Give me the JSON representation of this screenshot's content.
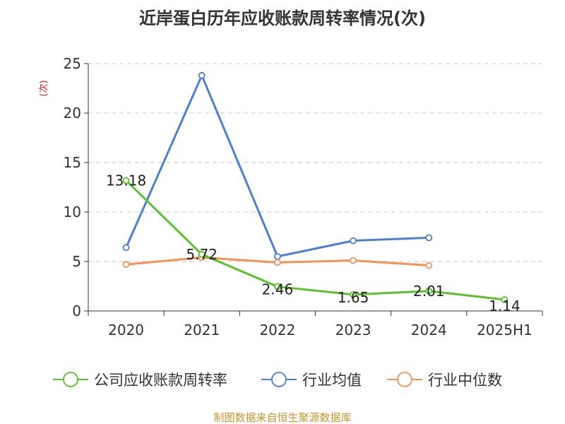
{
  "chart_data": {
    "type": "line",
    "title": "近岸蛋白历年应收账款周转率情况(次)",
    "ylabel": "(次)",
    "xlabel": "",
    "ylim": [
      0,
      25
    ],
    "y_ticks": [
      0,
      5,
      10,
      15,
      20,
      25
    ],
    "categories": [
      "2020",
      "2021",
      "2022",
      "2023",
      "2024",
      "2025H1"
    ],
    "grid": true,
    "legend_position": "bottom",
    "series": [
      {
        "name": "公司应收账款周转率",
        "color": "#5cc12e",
        "values": [
          13.18,
          5.72,
          2.46,
          1.65,
          2.01,
          1.14
        ],
        "data_labels": [
          "13.18",
          "5.72",
          "2.46",
          "1.65",
          "2.01",
          "1.14"
        ]
      },
      {
        "name": "行业均值",
        "color": "#4e7fd6",
        "values": [
          6.4,
          23.8,
          5.5,
          7.1,
          7.4,
          null
        ]
      },
      {
        "name": "行业中位数",
        "color": "#f4925a",
        "values": [
          4.7,
          5.4,
          4.9,
          5.1,
          4.6,
          null
        ]
      }
    ],
    "source": "制图数据来自恒生聚源数据库"
  }
}
